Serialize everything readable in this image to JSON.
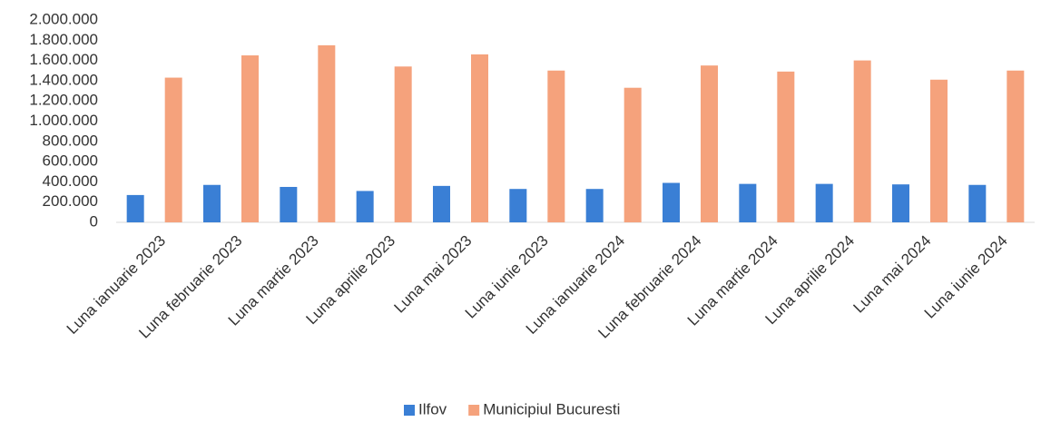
{
  "chart_data": {
    "type": "bar",
    "categories": [
      "Luna ianuarie 2023",
      "Luna februarie 2023",
      "Luna martie 2023",
      "Luna aprilie 2023",
      "Luna mai 2023",
      "Luna iunie 2023",
      "Luna ianuarie 2024",
      "Luna februarie 2024",
      "Luna martie 2024",
      "Luna aprilie 2024",
      "Luna mai 2024",
      "Luna iunie 2024"
    ],
    "series": [
      {
        "name": "Ilfov",
        "color": "#3a7fd5",
        "values": [
          270000,
          370000,
          350000,
          310000,
          360000,
          330000,
          330000,
          390000,
          380000,
          380000,
          375000,
          370000
        ]
      },
      {
        "name": "Municipiul Bucuresti",
        "color": "#f5a27c",
        "values": [
          1430000,
          1650000,
          1750000,
          1540000,
          1660000,
          1500000,
          1330000,
          1550000,
          1490000,
          1600000,
          1410000,
          1500000
        ]
      }
    ],
    "ylim": [
      0,
      2000000
    ],
    "yticks": [
      0,
      {
        "value": 200000,
        "label": "200.000"
      },
      {
        "value": 400000,
        "label": "400.000"
      },
      {
        "value": 600000,
        "label": "600.000"
      },
      {
        "value": 800000,
        "label": "800.000"
      },
      {
        "value": 1000000,
        "label": "1.000.000"
      },
      {
        "value": 1200000,
        "label": "1.200.000"
      },
      {
        "value": 1400000,
        "label": "1.400.000"
      },
      {
        "value": 1600000,
        "label": "1.600.000"
      },
      {
        "value": 1800000,
        "label": "1.800.000"
      },
      {
        "value": 2000000,
        "label": "2.000.000"
      }
    ],
    "grid": false,
    "legend": "bottom"
  }
}
